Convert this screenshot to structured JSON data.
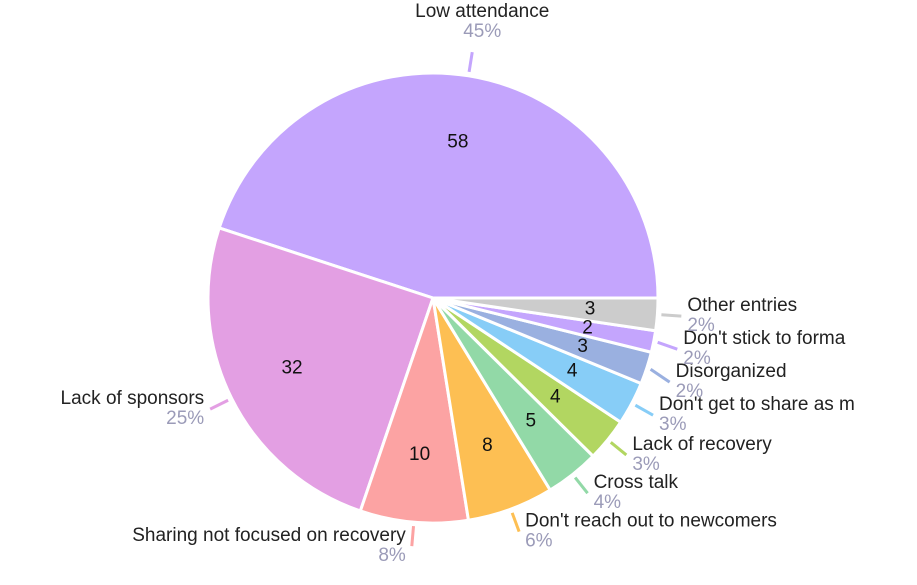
{
  "chart_data": {
    "type": "pie",
    "categories": [
      "Low attendance",
      "Lack of sponsors",
      "Sharing not focused on recovery",
      "Don't reach out to newcomers",
      "Cross talk",
      "Lack of recovery",
      "Don't get to share as m",
      "Disorganized",
      "Don't stick to forma",
      "Other entries"
    ],
    "values": [
      58,
      32,
      10,
      8,
      5,
      4,
      4,
      3,
      2,
      3
    ],
    "percent_labels": [
      "45%",
      "25%",
      "8%",
      "6%",
      "4%",
      "3%",
      "3%",
      "2%",
      "2%",
      "2%"
    ],
    "colors": [
      "#c4a5fd",
      "#e39fe3",
      "#fca3a3",
      "#fdbf53",
      "#92d9a7",
      "#b2d661",
      "#87cdf7",
      "#9ab0e0",
      "#c4a5fd",
      "#cccccc"
    ]
  }
}
